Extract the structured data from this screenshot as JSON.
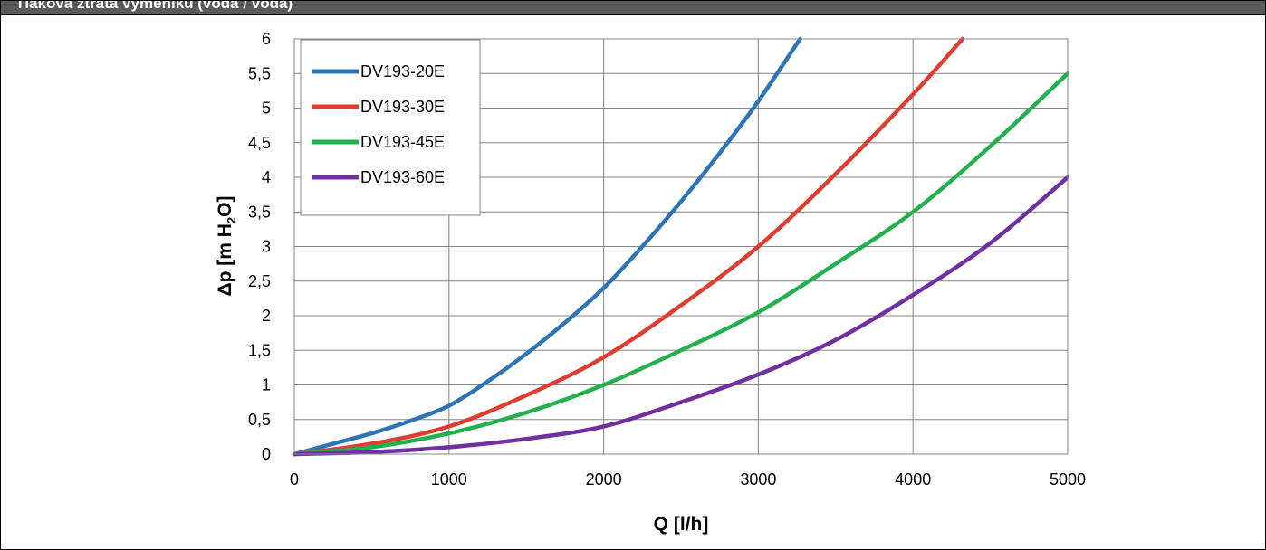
{
  "header": {
    "title": "Tlaková ztráta výměníku (voda / voda)"
  },
  "chart_data": {
    "type": "line",
    "xlabel": "Q [l/h]",
    "ylabel": {
      "prefix": "Δp [m H",
      "sub": "2",
      "suffix": "O]"
    },
    "xlim": [
      0,
      5000
    ],
    "ylim": [
      0,
      6
    ],
    "xticks": [
      "0",
      "1000",
      "2000",
      "3000",
      "4000",
      "5000"
    ],
    "xtick_values": [
      0,
      1000,
      2000,
      3000,
      4000,
      5000
    ],
    "yticks": [
      "0",
      "0,5",
      "1",
      "1,5",
      "2",
      "2,5",
      "3",
      "3,5",
      "4",
      "4,5",
      "5",
      "5,5",
      "6"
    ],
    "ytick_values": [
      0,
      0.5,
      1,
      1.5,
      2,
      2.5,
      3,
      3.5,
      4,
      4.5,
      5,
      5.5,
      6
    ],
    "grid": true,
    "legend_position": "top-left",
    "series": [
      {
        "name": "DV193-20E",
        "color": "#2e75b6",
        "x": [
          0,
          250,
          500,
          750,
          1000,
          1250,
          1500,
          1750,
          2000,
          2250,
          2500,
          2750,
          3000,
          3270
        ],
        "y": [
          0,
          0.15,
          0.3,
          0.48,
          0.7,
          1.05,
          1.45,
          1.9,
          2.4,
          3.0,
          3.65,
          4.35,
          5.1,
          6.0
        ]
      },
      {
        "name": "DV193-30E",
        "color": "#e03c31",
        "x": [
          0,
          500,
          1000,
          1500,
          2000,
          2500,
          3000,
          3500,
          4000,
          4320
        ],
        "y": [
          0,
          0.15,
          0.4,
          0.85,
          1.4,
          2.15,
          3.0,
          4.05,
          5.2,
          6.0
        ]
      },
      {
        "name": "DV193-45E",
        "color": "#22b14c",
        "x": [
          0,
          500,
          1000,
          1500,
          2000,
          2500,
          3000,
          3500,
          4000,
          4500,
          5000
        ],
        "y": [
          0,
          0.1,
          0.3,
          0.6,
          1.0,
          1.5,
          2.05,
          2.75,
          3.5,
          4.45,
          5.5
        ]
      },
      {
        "name": "DV193-60E",
        "color": "#7030a0",
        "x": [
          0,
          500,
          1000,
          1500,
          2000,
          2500,
          3000,
          3500,
          4000,
          4500,
          5000
        ],
        "y": [
          0,
          0.03,
          0.1,
          0.22,
          0.4,
          0.75,
          1.15,
          1.65,
          2.3,
          3.05,
          4.0
        ]
      }
    ]
  }
}
